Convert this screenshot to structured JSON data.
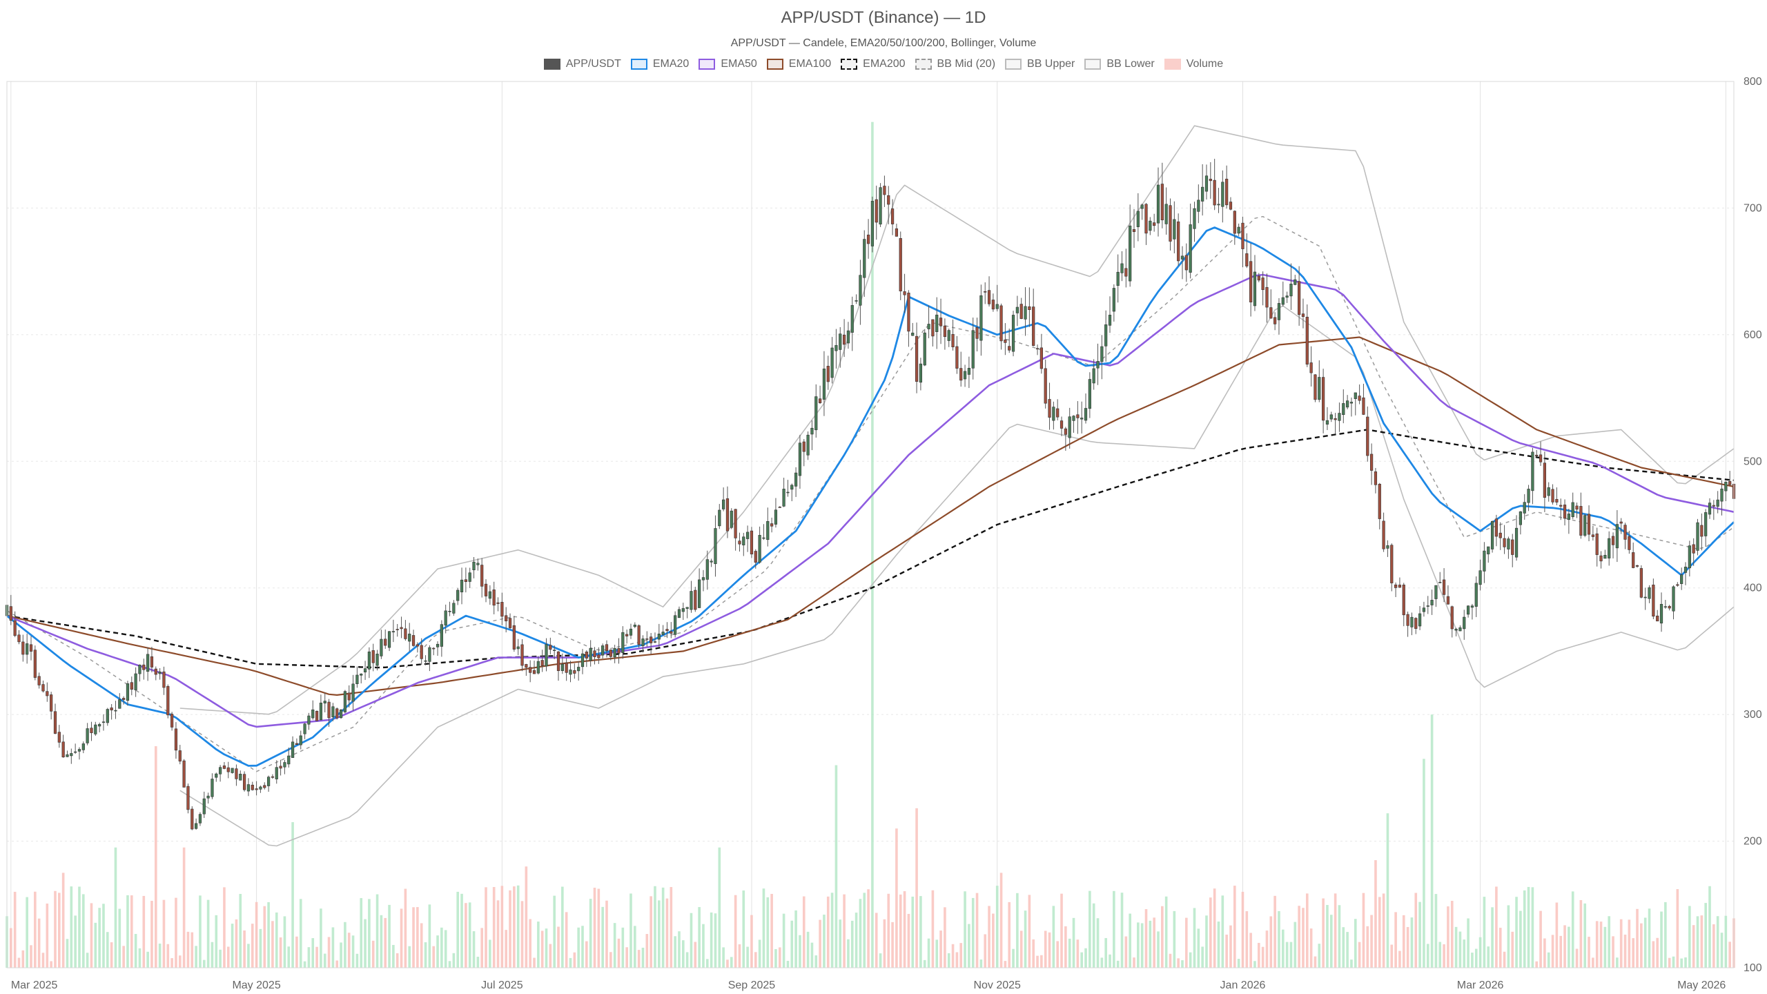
{
  "chart_data": {
    "type": "candlestick",
    "title": "APP/USDT (Binance) — 1D",
    "subtitle": "APP/USDT — Candele, EMA20/50/100/200, Bollinger, Volume",
    "ylim": [
      100,
      800
    ],
    "y_ticks": [
      100,
      200,
      300,
      400,
      500,
      600,
      700,
      800
    ],
    "x_ticks": [
      "Mar 2025",
      "May 2025",
      "Jul 2025",
      "Sep 2025",
      "Nov 2025",
      "Jan 2026",
      "Mar 2026",
      "May 2026"
    ],
    "x_start": "2025-02-28",
    "x_end": "2026-05-03",
    "legend": [
      {
        "label": "APP/USDT",
        "color": "#555555",
        "style": "fill"
      },
      {
        "label": "EMA20",
        "color": "#1e88e5",
        "style": "line"
      },
      {
        "label": "EMA50",
        "color": "#8e5ce0",
        "style": "line"
      },
      {
        "label": "EMA100",
        "color": "#8d4b2a",
        "style": "line"
      },
      {
        "label": "EMA200",
        "color": "#111111",
        "style": "dash"
      },
      {
        "label": "BB Mid (20)",
        "color": "#999999",
        "style": "dash"
      },
      {
        "label": "BB Upper",
        "color": "#bbbbbb",
        "style": "line"
      },
      {
        "label": "BB Lower",
        "color": "#bbbbbb",
        "style": "line"
      },
      {
        "label": "Volume",
        "color": "#f6a8a0",
        "style": "fill"
      }
    ],
    "colors": {
      "up": "#4a7c59",
      "down": "#a0503f",
      "vol_up": "#b6e8c8",
      "vol_down": "#f9c2bc",
      "grid": "#e8e8e8"
    },
    "close_path": [
      [
        "2025-02-28",
        378
      ],
      [
        "2025-03-08",
        330
      ],
      [
        "2025-03-15",
        262
      ],
      [
        "2025-03-22",
        292
      ],
      [
        "2025-03-30",
        318
      ],
      [
        "2025-04-05",
        346
      ],
      [
        "2025-04-10",
        295
      ],
      [
        "2025-04-15",
        212
      ],
      [
        "2025-04-22",
        262
      ],
      [
        "2025-04-30",
        238
      ],
      [
        "2025-05-08",
        265
      ],
      [
        "2025-05-15",
        302
      ],
      [
        "2025-05-22",
        305
      ],
      [
        "2025-05-28",
        342
      ],
      [
        "2025-06-05",
        372
      ],
      [
        "2025-06-12",
        338
      ],
      [
        "2025-06-20",
        395
      ],
      [
        "2025-06-24",
        418
      ],
      [
        "2025-06-30",
        385
      ],
      [
        "2025-07-08",
        330
      ],
      [
        "2025-07-12",
        348
      ],
      [
        "2025-07-18",
        338
      ],
      [
        "2025-07-26",
        350
      ],
      [
        "2025-08-03",
        363
      ],
      [
        "2025-08-10",
        360
      ],
      [
        "2025-08-18",
        392
      ],
      [
        "2025-08-25",
        460
      ],
      [
        "2025-09-02",
        425
      ],
      [
        "2025-09-10",
        480
      ],
      [
        "2025-09-18",
        555
      ],
      [
        "2025-09-25",
        610
      ],
      [
        "2025-10-01",
        700
      ],
      [
        "2025-10-05",
        720
      ],
      [
        "2025-10-08",
        650
      ],
      [
        "2025-10-12",
        575
      ],
      [
        "2025-10-18",
        615
      ],
      [
        "2025-10-23",
        562
      ],
      [
        "2025-10-29",
        635
      ],
      [
        "2025-11-04",
        595
      ],
      [
        "2025-11-08",
        635
      ],
      [
        "2025-11-12",
        560
      ],
      [
        "2025-11-18",
        525
      ],
      [
        "2025-11-23",
        545
      ],
      [
        "2025-11-28",
        600
      ],
      [
        "2025-12-05",
        685
      ],
      [
        "2025-12-12",
        705
      ],
      [
        "2025-12-18",
        660
      ],
      [
        "2025-12-22",
        725
      ],
      [
        "2025-12-27",
        715
      ],
      [
        "2026-01-03",
        640
      ],
      [
        "2026-01-09",
        615
      ],
      [
        "2026-01-13",
        655
      ],
      [
        "2026-01-18",
        570
      ],
      [
        "2026-01-24",
        520
      ],
      [
        "2026-01-30",
        560
      ],
      [
        "2026-02-04",
        450
      ],
      [
        "2026-02-08",
        400
      ],
      [
        "2026-02-13",
        365
      ],
      [
        "2026-02-18",
        405
      ],
      [
        "2026-02-23",
        370
      ],
      [
        "2026-02-28",
        395
      ],
      [
        "2026-03-04",
        455
      ],
      [
        "2026-03-09",
        425
      ],
      [
        "2026-03-14",
        505
      ],
      [
        "2026-03-19",
        465
      ],
      [
        "2026-03-25",
        455
      ],
      [
        "2026-03-31",
        430
      ],
      [
        "2026-04-05",
        455
      ],
      [
        "2026-04-10",
        400
      ],
      [
        "2026-04-15",
        378
      ],
      [
        "2026-04-20",
        412
      ],
      [
        "2026-04-25",
        450
      ],
      [
        "2026-04-29",
        470
      ],
      [
        "2026-05-03",
        478
      ]
    ],
    "volume_spikes": [
      [
        "2025-03-02",
        60
      ],
      [
        "2025-03-14",
        75
      ],
      [
        "2025-03-27",
        95
      ],
      [
        "2025-04-06",
        175
      ],
      [
        "2025-04-13",
        95
      ],
      [
        "2025-05-10",
        115
      ],
      [
        "2025-06-20",
        60
      ],
      [
        "2025-07-05",
        65
      ],
      [
        "2025-07-07",
        80
      ],
      [
        "2025-08-24",
        95
      ],
      [
        "2025-09-22",
        160
      ],
      [
        "2025-09-30",
        62
      ],
      [
        "2025-10-01",
        668
      ],
      [
        "2025-10-07",
        110
      ],
      [
        "2025-10-12",
        126
      ],
      [
        "2025-11-02",
        75
      ],
      [
        "2026-01-01",
        60
      ],
      [
        "2026-02-03",
        85
      ],
      [
        "2026-02-06",
        122
      ],
      [
        "2026-02-15",
        165
      ],
      [
        "2026-02-17",
        200
      ]
    ],
    "ema20": [
      [
        "2025-02-28",
        378
      ],
      [
        "2025-03-15",
        340
      ],
      [
        "2025-03-30",
        308
      ],
      [
        "2025-04-10",
        300
      ],
      [
        "2025-04-22",
        270
      ],
      [
        "2025-04-30",
        258
      ],
      [
        "2025-05-15",
        282
      ],
      [
        "2025-05-30",
        325
      ],
      [
        "2025-06-12",
        360
      ],
      [
        "2025-06-22",
        378
      ],
      [
        "2025-07-05",
        365
      ],
      [
        "2025-07-20",
        345
      ],
      [
        "2025-08-05",
        355
      ],
      [
        "2025-08-18",
        375
      ],
      [
        "2025-08-30",
        410
      ],
      [
        "2025-09-12",
        445
      ],
      [
        "2025-09-25",
        510
      ],
      [
        "2025-10-05",
        570
      ],
      [
        "2025-10-10",
        630
      ],
      [
        "2025-10-20",
        615
      ],
      [
        "2025-11-01",
        600
      ],
      [
        "2025-11-12",
        610
      ],
      [
        "2025-11-22",
        575
      ],
      [
        "2025-11-30",
        578
      ],
      [
        "2025-12-10",
        630
      ],
      [
        "2025-12-24",
        686
      ],
      [
        "2026-01-05",
        670
      ],
      [
        "2026-01-15",
        650
      ],
      [
        "2026-01-28",
        590
      ],
      [
        "2026-02-05",
        530
      ],
      [
        "2026-02-18",
        470
      ],
      [
        "2026-03-01",
        445
      ],
      [
        "2026-03-10",
        465
      ],
      [
        "2026-03-20",
        463
      ],
      [
        "2026-04-01",
        455
      ],
      [
        "2026-04-10",
        435
      ],
      [
        "2026-04-20",
        410
      ],
      [
        "2026-04-30",
        443
      ],
      [
        "2026-05-03",
        452
      ]
    ],
    "ema50": [
      [
        "2025-02-28",
        378
      ],
      [
        "2025-03-20",
        352
      ],
      [
        "2025-04-10",
        330
      ],
      [
        "2025-04-30",
        290
      ],
      [
        "2025-05-20",
        296
      ],
      [
        "2025-06-10",
        325
      ],
      [
        "2025-06-30",
        345
      ],
      [
        "2025-07-20",
        345
      ],
      [
        "2025-08-10",
        355
      ],
      [
        "2025-08-30",
        385
      ],
      [
        "2025-09-20",
        435
      ],
      [
        "2025-10-10",
        505
      ],
      [
        "2025-10-30",
        560
      ],
      [
        "2025-11-15",
        585
      ],
      [
        "2025-11-30",
        575
      ],
      [
        "2025-12-20",
        625
      ],
      [
        "2026-01-05",
        648
      ],
      [
        "2026-01-25",
        635
      ],
      [
        "2026-02-05",
        595
      ],
      [
        "2026-02-20",
        545
      ],
      [
        "2026-03-10",
        515
      ],
      [
        "2026-03-30",
        498
      ],
      [
        "2026-04-15",
        472
      ],
      [
        "2026-05-03",
        460
      ]
    ],
    "ema100": [
      [
        "2025-02-28",
        378
      ],
      [
        "2025-03-30",
        356
      ],
      [
        "2025-04-30",
        335
      ],
      [
        "2025-05-20",
        315
      ],
      [
        "2025-06-15",
        325
      ],
      [
        "2025-07-15",
        340
      ],
      [
        "2025-08-15",
        350
      ],
      [
        "2025-09-10",
        375
      ],
      [
        "2025-10-01",
        420
      ],
      [
        "2025-10-30",
        480
      ],
      [
        "2025-11-30",
        532
      ],
      [
        "2025-12-20",
        560
      ],
      [
        "2026-01-10",
        592
      ],
      [
        "2026-01-30",
        598
      ],
      [
        "2026-02-20",
        570
      ],
      [
        "2026-03-15",
        525
      ],
      [
        "2026-04-10",
        495
      ],
      [
        "2026-05-03",
        480
      ]
    ],
    "ema200": [
      [
        "2025-02-28",
        378
      ],
      [
        "2025-04-01",
        362
      ],
      [
        "2025-05-01",
        340
      ],
      [
        "2025-06-01",
        337
      ],
      [
        "2025-07-01",
        345
      ],
      [
        "2025-08-01",
        348
      ],
      [
        "2025-09-01",
        366
      ],
      [
        "2025-10-01",
        400
      ],
      [
        "2025-11-01",
        450
      ],
      [
        "2025-12-01",
        480
      ],
      [
        "2026-01-01",
        510
      ],
      [
        "2026-02-01",
        525
      ],
      [
        "2026-03-01",
        510
      ],
      [
        "2026-04-01",
        495
      ],
      [
        "2026-05-03",
        485
      ]
    ],
    "bb_mid": [
      [
        "2025-02-28",
        382
      ],
      [
        "2025-03-20",
        345
      ],
      [
        "2025-04-10",
        300
      ],
      [
        "2025-05-01",
        255
      ],
      [
        "2025-05-25",
        290
      ],
      [
        "2025-06-15",
        365
      ],
      [
        "2025-07-05",
        378
      ],
      [
        "2025-07-25",
        350
      ],
      [
        "2025-08-15",
        365
      ],
      [
        "2025-09-05",
        415
      ],
      [
        "2025-09-25",
        510
      ],
      [
        "2025-10-15",
        610
      ],
      [
        "2025-11-05",
        595
      ],
      [
        "2025-11-25",
        575
      ],
      [
        "2025-12-15",
        630
      ],
      [
        "2026-01-05",
        695
      ],
      [
        "2026-01-20",
        670
      ],
      [
        "2026-02-05",
        560
      ],
      [
        "2026-02-25",
        440
      ],
      [
        "2026-03-15",
        460
      ],
      [
        "2026-04-05",
        445
      ],
      [
        "2026-04-25",
        430
      ],
      [
        "2026-05-03",
        448
      ]
    ],
    "bb_upper": [
      [
        "2025-04-12",
        305
      ],
      [
        "2025-05-05",
        300
      ],
      [
        "2025-05-25",
        345
      ],
      [
        "2025-06-15",
        415
      ],
      [
        "2025-07-05",
        430
      ],
      [
        "2025-07-25",
        410
      ],
      [
        "2025-08-10",
        385
      ],
      [
        "2025-08-30",
        460
      ],
      [
        "2025-09-20",
        550
      ],
      [
        "2025-10-08",
        720
      ],
      [
        "2025-11-05",
        665
      ],
      [
        "2025-11-25",
        645
      ],
      [
        "2025-12-20",
        765
      ],
      [
        "2026-01-10",
        750
      ],
      [
        "2026-01-30",
        745
      ],
      [
        "2026-02-10",
        610
      ],
      [
        "2026-03-01",
        500
      ],
      [
        "2026-03-20",
        520
      ],
      [
        "2026-04-05",
        525
      ],
      [
        "2026-04-20",
        480
      ],
      [
        "2026-05-03",
        510
      ]
    ],
    "bb_lower": [
      [
        "2025-04-12",
        240
      ],
      [
        "2025-05-05",
        195
      ],
      [
        "2025-05-25",
        220
      ],
      [
        "2025-06-15",
        290
      ],
      [
        "2025-07-05",
        320
      ],
      [
        "2025-07-25",
        305
      ],
      [
        "2025-08-10",
        330
      ],
      [
        "2025-08-30",
        340
      ],
      [
        "2025-09-20",
        360
      ],
      [
        "2025-10-08",
        430
      ],
      [
        "2025-11-05",
        530
      ],
      [
        "2025-11-25",
        515
      ],
      [
        "2025-12-20",
        510
      ],
      [
        "2026-01-10",
        625
      ],
      [
        "2026-01-30",
        580
      ],
      [
        "2026-02-10",
        470
      ],
      [
        "2026-03-01",
        320
      ],
      [
        "2026-03-20",
        350
      ],
      [
        "2026-04-05",
        365
      ],
      [
        "2026-04-20",
        350
      ],
      [
        "2026-05-03",
        385
      ]
    ]
  }
}
